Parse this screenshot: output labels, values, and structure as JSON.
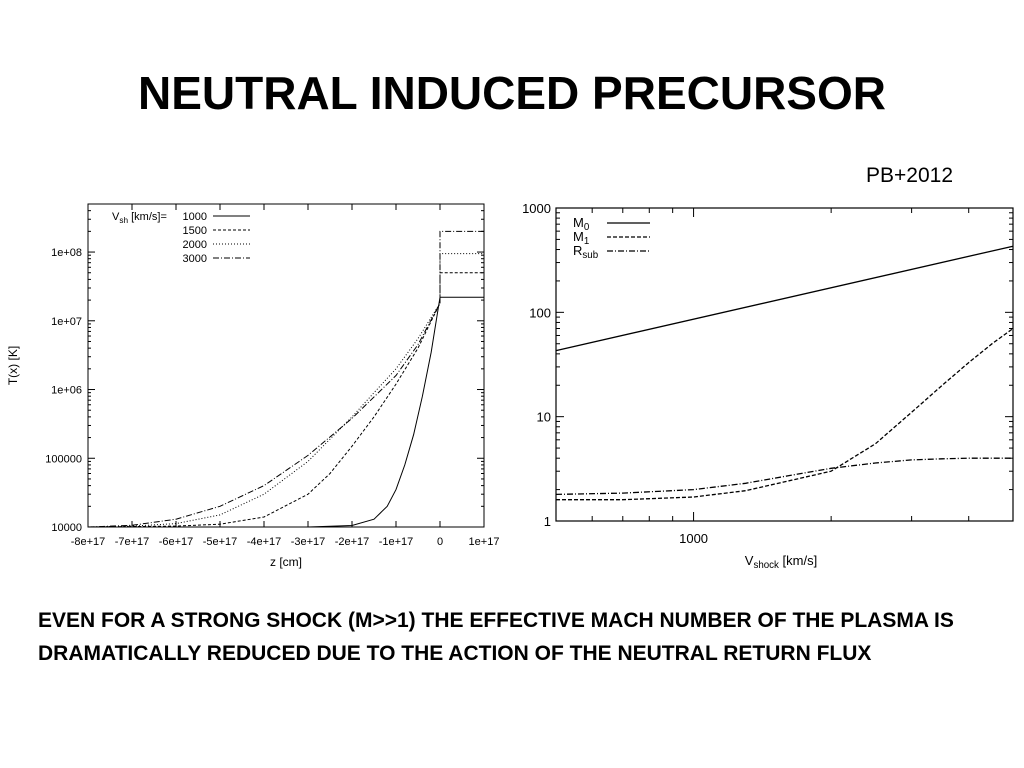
{
  "slide": {
    "title": "NEUTRAL INDUCED PRECURSOR",
    "citation": "PB+2012",
    "body_text": "EVEN FOR A STRONG SHOCK (M>>1) THE EFFECTIVE MACH NUMBER OF THE PLASMA IS DRAMATICALLY REDUCED DUE TO THE ACTION OF THE NEUTRAL RETURN FLUX"
  },
  "chart_data": [
    {
      "type": "line",
      "xlabel": "z [cm]",
      "ylabel": "T(x) [K]",
      "xlim": [
        -8e+17,
        1e+17
      ],
      "ylim": [
        10000,
        500000000
      ],
      "yscale": "log",
      "grid": false,
      "legend_position": "top-left",
      "legend_title": "Vsh [km/s]=",
      "legend_title_main": "V",
      "legend_title_sub": "sh",
      "legend_title_rest": " [km/s]=",
      "x_ticks": [
        {
          "value": -8e+17,
          "label": "-8e+17"
        },
        {
          "value": -7e+17,
          "label": "-7e+17"
        },
        {
          "value": -6e+17,
          "label": "-6e+17"
        },
        {
          "value": -5e+17,
          "label": "-5e+17"
        },
        {
          "value": -4e+17,
          "label": "-4e+17"
        },
        {
          "value": -3e+17,
          "label": "-3e+17"
        },
        {
          "value": -2e+17,
          "label": "-2e+17"
        },
        {
          "value": -1e+17,
          "label": "-1e+17"
        },
        {
          "value": 0,
          "label": "0"
        },
        {
          "value": 1e+17,
          "label": "1e+17"
        }
      ],
      "y_ticks": [
        {
          "value": 10000,
          "label": "10000"
        },
        {
          "value": 100000,
          "label": "100000"
        },
        {
          "value": 1000000,
          "label": "1e+06"
        },
        {
          "value": 10000000,
          "label": "1e+07"
        },
        {
          "value": 100000000,
          "label": "1e+08"
        }
      ],
      "series": [
        {
          "name": "1000",
          "dash": "",
          "x": [
            -8e+17,
            -3e+17,
            -2e+17,
            -1.5e+17,
            -1.2e+17,
            -1e+17,
            -8e+16,
            -6e+16,
            -4e+16,
            -2e+16,
            0,
            1e+17
          ],
          "y": [
            10000,
            10000,
            10500,
            13000,
            20000,
            35000,
            80000,
            220000,
            800000,
            3500000,
            22000000,
            22000000
          ]
        },
        {
          "name": "1500",
          "dash": "3,2",
          "x": [
            -8e+17,
            -6e+17,
            -5e+17,
            -4e+17,
            -3e+17,
            -2.5e+17,
            -2e+17,
            -1.5e+17,
            -1e+17,
            -5e+16,
            0,
            0.0001,
            1e+17
          ],
          "y": [
            10000,
            10300,
            11000,
            14000,
            30000,
            60000,
            150000,
            400000,
            1200000,
            4000000,
            18000000,
            50000000,
            50000000
          ]
        },
        {
          "name": "2000",
          "dash": "1,2",
          "x": [
            -8e+17,
            -7e+17,
            -6e+17,
            -5e+17,
            -4e+17,
            -3e+17,
            -2e+17,
            -1.5e+17,
            -1e+17,
            -5e+16,
            0,
            0.0001,
            1e+17
          ],
          "y": [
            10000,
            10300,
            11200,
            15000,
            30000,
            90000,
            400000,
            900000,
            2000000,
            5500000,
            18000000,
            95000000,
            95000000
          ]
        },
        {
          "name": "3000",
          "dash": "6,2,1,2",
          "x": [
            -8e+17,
            -7e+17,
            -6e+17,
            -5e+17,
            -4e+17,
            -3e+17,
            -2e+17,
            -1e+17,
            -5e+16,
            0,
            0.0001,
            1e+17
          ],
          "y": [
            10000,
            10600,
            13000,
            20000,
            40000,
            110000,
            380000,
            1600000,
            4500000,
            18000000,
            200000000,
            200000000
          ]
        }
      ]
    },
    {
      "type": "line",
      "xlabel": "Vshock [km/s]",
      "xlabel_main": "V",
      "xlabel_sub": "shock",
      "xlabel_rest": " [km/s]",
      "ylabel": "",
      "xlim": [
        500,
        5000
      ],
      "ylim": [
        1,
        1000
      ],
      "xscale": "log",
      "yscale": "log",
      "grid": false,
      "legend_position": "top-left",
      "x_ticks": [
        {
          "value": 1000,
          "label": "1000"
        }
      ],
      "x_minor_ticks": [
        500,
        600,
        700,
        800,
        900,
        2000,
        3000,
        4000,
        5000
      ],
      "y_ticks": [
        {
          "value": 1,
          "label": "1"
        },
        {
          "value": 10,
          "label": "10"
        },
        {
          "value": 100,
          "label": "100"
        },
        {
          "value": 1000,
          "label": "1000"
        }
      ],
      "series": [
        {
          "name": "M0",
          "name_main": "M",
          "name_sub": "0",
          "dash": "",
          "x": [
            500,
            5000
          ],
          "y": [
            43,
            430
          ]
        },
        {
          "name": "M1",
          "name_main": "M",
          "name_sub": "1",
          "dash": "4,2",
          "x": [
            500,
            700,
            1000,
            1300,
            1600,
            2000,
            2500,
            3000,
            3500,
            4000,
            4500,
            5000
          ],
          "y": [
            1.6,
            1.6,
            1.7,
            1.95,
            2.4,
            3.0,
            5.5,
            11,
            20,
            33,
            50,
            70
          ]
        },
        {
          "name": "Rsub",
          "name_main": "R",
          "name_sub": "sub",
          "dash": "6,2,1,2",
          "x": [
            500,
            700,
            1000,
            1300,
            1600,
            2000,
            2500,
            3000,
            3500,
            4000,
            4500,
            5000
          ],
          "y": [
            1.8,
            1.85,
            2.0,
            2.3,
            2.7,
            3.2,
            3.6,
            3.85,
            3.95,
            4.0,
            4.0,
            4.0
          ]
        }
      ]
    }
  ]
}
